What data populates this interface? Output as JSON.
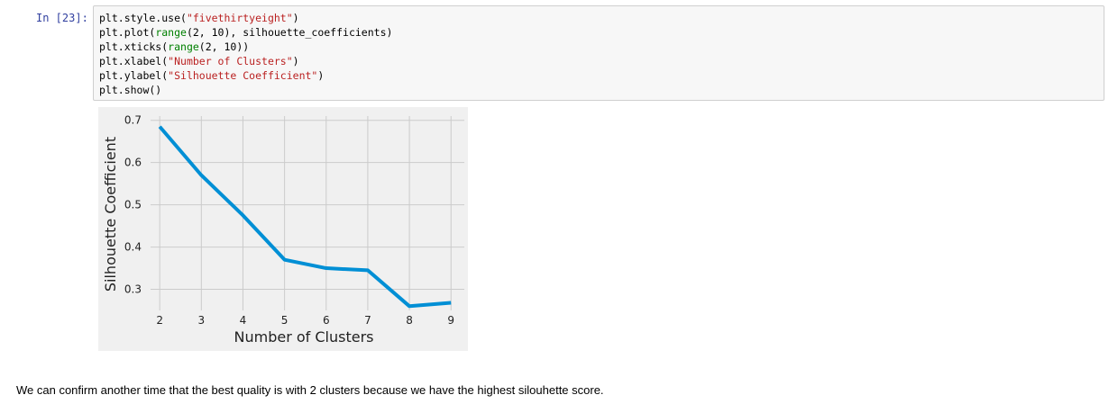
{
  "cell": {
    "prompt": "In [23]:",
    "code_lines": [
      "plt.style.use(\"fivethirtyeight\")",
      "plt.plot(range(2, 10), silhouette_coefficients)",
      "plt.xticks(range(2, 10))",
      "plt.xlabel(\"Number of Clusters\")",
      "plt.ylabel(\"Silhouette Coefficient\")",
      "plt.show()"
    ]
  },
  "chart_data": {
    "type": "line",
    "x": [
      2,
      3,
      4,
      5,
      6,
      7,
      8,
      9
    ],
    "series": [
      {
        "values": [
          0.685,
          0.57,
          0.475,
          0.37,
          0.35,
          0.345,
          0.26,
          0.268
        ],
        "color": "#008fd5"
      }
    ],
    "xlabel": "Number of Clusters",
    "ylabel": "Silhouette Coefficient",
    "xticks": [
      2,
      3,
      4,
      5,
      6,
      7,
      8,
      9
    ],
    "yticks": [
      0.3,
      0.4,
      0.5,
      0.6,
      0.7
    ],
    "xlim": [
      1.78,
      9.32
    ],
    "ylim": [
      0.25,
      0.71
    ],
    "grid": true,
    "style": "fivethirtyeight",
    "background": "#f0f0f0",
    "gridColor": "#cbcbcb"
  },
  "markdown": {
    "text": "We can confirm another time that the best quality is with 2 clusters because we have the highest silouhette score."
  }
}
